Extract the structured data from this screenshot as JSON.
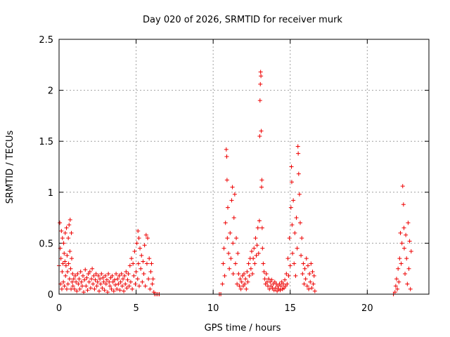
{
  "chart_data": {
    "type": "scatter",
    "title": "Day 020 of 2026, SRMTID for receiver murk",
    "xlabel": "GPS time / hours",
    "ylabel": "SRMTID / TECUs",
    "xlim": [
      0,
      24
    ],
    "ylim": [
      0,
      2.5
    ],
    "x_ticks": [
      0,
      5,
      10,
      15,
      20
    ],
    "x_tick_labels": [
      "0",
      "5",
      "10",
      "15",
      "20"
    ],
    "y_ticks": [
      0,
      0.5,
      1,
      1.5,
      2,
      2.5
    ],
    "y_tick_labels": [
      "0",
      "0.5",
      "1",
      "1.5",
      "2",
      "2.5"
    ],
    "grid": true,
    "marker": "+",
    "color": "#ee0000",
    "series": [
      {
        "name": "SRMTID",
        "points": [
          [
            0.0,
            0.28
          ],
          [
            0.05,
            0.7
          ],
          [
            0.08,
            0.45
          ],
          [
            0.1,
            0.1
          ],
          [
            0.12,
            0.35
          ],
          [
            0.15,
            0.62
          ],
          [
            0.18,
            0.05
          ],
          [
            0.2,
            0.22
          ],
          [
            0.22,
            0.55
          ],
          [
            0.25,
            0.3
          ],
          [
            0.28,
            0.12
          ],
          [
            0.3,
            0.5
          ],
          [
            0.33,
            0.4
          ],
          [
            0.35,
            0.08
          ],
          [
            0.38,
            0.32
          ],
          [
            0.4,
            0.6
          ],
          [
            0.42,
            0.18
          ],
          [
            0.45,
            0.28
          ],
          [
            0.48,
            0.65
          ],
          [
            0.5,
            0.05
          ],
          [
            0.52,
            0.38
          ],
          [
            0.55,
            0.22
          ],
          [
            0.58,
            0.1
          ],
          [
            0.6,
            0.55
          ],
          [
            0.62,
            0.3
          ],
          [
            0.65,
            0.68
          ],
          [
            0.68,
            0.15
          ],
          [
            0.7,
            0.42
          ],
          [
            0.72,
            0.73
          ],
          [
            0.75,
            0.25
          ],
          [
            0.78,
            0.05
          ],
          [
            0.8,
            0.6
          ],
          [
            0.82,
            0.35
          ],
          [
            0.85,
            0.12
          ],
          [
            0.88,
            0.2
          ],
          [
            0.9,
            0.08
          ],
          [
            0.95,
            0.15
          ],
          [
            1.0,
            0.05
          ],
          [
            1.05,
            0.18
          ],
          [
            1.1,
            0.12
          ],
          [
            1.15,
            0.03
          ],
          [
            1.2,
            0.2
          ],
          [
            1.25,
            0.1
          ],
          [
            1.3,
            0.15
          ],
          [
            1.35,
            0.05
          ],
          [
            1.4,
            0.22
          ],
          [
            1.45,
            0.12
          ],
          [
            1.5,
            0.08
          ],
          [
            1.55,
            0.18
          ],
          [
            1.6,
            0.02
          ],
          [
            1.65,
            0.14
          ],
          [
            1.7,
            0.24
          ],
          [
            1.75,
            0.08
          ],
          [
            1.8,
            0.16
          ],
          [
            1.85,
            0.04
          ],
          [
            1.9,
            0.2
          ],
          [
            1.95,
            0.12
          ],
          [
            2.0,
            0.22
          ],
          [
            2.05,
            0.06
          ],
          [
            2.1,
            0.15
          ],
          [
            2.15,
            0.25
          ],
          [
            2.2,
            0.1
          ],
          [
            2.25,
            0.18
          ],
          [
            2.3,
            0.05
          ],
          [
            2.35,
            0.14
          ],
          [
            2.4,
            0.2
          ],
          [
            2.45,
            0.08
          ],
          [
            2.5,
            0.12
          ],
          [
            2.55,
            0.18
          ],
          [
            2.6,
            0.03
          ],
          [
            2.65,
            0.15
          ],
          [
            2.7,
            0.1
          ],
          [
            2.75,
            0.2
          ],
          [
            2.8,
            0.06
          ],
          [
            2.85,
            0.16
          ],
          [
            2.9,
            0.12
          ],
          [
            2.95,
            0.04
          ],
          [
            3.0,
            0.18
          ],
          [
            3.05,
            0.1
          ],
          [
            3.1,
            0.14
          ],
          [
            3.15,
            0.02
          ],
          [
            3.2,
            0.2
          ],
          [
            3.25,
            0.12
          ],
          [
            3.3,
            0.08
          ],
          [
            3.35,
            0.16
          ],
          [
            3.4,
            0.05
          ],
          [
            3.45,
            0.18
          ],
          [
            3.5,
            0.12
          ],
          [
            3.55,
            0.03
          ],
          [
            3.6,
            0.14
          ],
          [
            3.65,
            0.09
          ],
          [
            3.7,
            0.2
          ],
          [
            3.75,
            0.05
          ],
          [
            3.8,
            0.15
          ],
          [
            3.85,
            0.1
          ],
          [
            3.9,
            0.18
          ],
          [
            3.95,
            0.04
          ],
          [
            4.0,
            0.12
          ],
          [
            4.05,
            0.2
          ],
          [
            4.1,
            0.08
          ],
          [
            4.15,
            0.15
          ],
          [
            4.2,
            0.03
          ],
          [
            4.25,
            0.18
          ],
          [
            4.3,
            0.1
          ],
          [
            4.35,
            0.22
          ],
          [
            4.4,
            0.06
          ],
          [
            4.45,
            0.14
          ],
          [
            4.5,
            0.2
          ],
          [
            4.55,
            0.08
          ],
          [
            4.6,
            0.28
          ],
          [
            4.65,
            0.12
          ],
          [
            4.7,
            0.35
          ],
          [
            4.75,
            0.05
          ],
          [
            4.8,
            0.3
          ],
          [
            4.85,
            0.18
          ],
          [
            4.9,
            0.42
          ],
          [
            4.95,
            0.1
          ],
          [
            5.0,
            0.22
          ],
          [
            5.05,
            0.5
          ],
          [
            5.1,
            0.15
          ],
          [
            5.12,
            0.62
          ],
          [
            5.15,
            0.3
          ],
          [
            5.18,
            0.55
          ],
          [
            5.2,
            0.08
          ],
          [
            5.25,
            0.45
          ],
          [
            5.3,
            0.25
          ],
          [
            5.35,
            0.38
          ],
          [
            5.4,
            0.12
          ],
          [
            5.45,
            0.32
          ],
          [
            5.5,
            0.2
          ],
          [
            5.55,
            0.48
          ],
          [
            5.6,
            0.08
          ],
          [
            5.65,
            0.58
          ],
          [
            5.7,
            0.3
          ],
          [
            5.75,
            0.55
          ],
          [
            5.8,
            0.15
          ],
          [
            5.85,
            0.35
          ],
          [
            5.9,
            0.05
          ],
          [
            5.95,
            0.22
          ],
          [
            6.0,
            0.3
          ],
          [
            6.05,
            0.1
          ],
          [
            6.1,
            0.15
          ],
          [
            6.15,
            0.02
          ],
          [
            6.2,
            0.0
          ],
          [
            6.3,
            0.0
          ],
          [
            6.4,
            0.0
          ],
          [
            6.5,
            0.0
          ],
          [
            10.4,
            0.0
          ],
          [
            10.5,
            0.0
          ],
          [
            10.6,
            0.1
          ],
          [
            10.65,
            0.3
          ],
          [
            10.7,
            0.45
          ],
          [
            10.75,
            0.18
          ],
          [
            10.8,
            0.7
          ],
          [
            10.85,
            1.42
          ],
          [
            10.88,
            1.35
          ],
          [
            10.9,
            1.12
          ],
          [
            10.92,
            0.55
          ],
          [
            10.95,
            0.85
          ],
          [
            11.0,
            0.4
          ],
          [
            11.05,
            0.25
          ],
          [
            11.1,
            0.6
          ],
          [
            11.15,
            0.35
          ],
          [
            11.2,
            0.92
          ],
          [
            11.25,
            1.05
          ],
          [
            11.28,
            0.5
          ],
          [
            11.3,
            0.2
          ],
          [
            11.35,
            0.75
          ],
          [
            11.4,
            0.98
          ],
          [
            11.45,
            0.3
          ],
          [
            11.5,
            0.55
          ],
          [
            11.55,
            0.1
          ],
          [
            11.6,
            0.4
          ],
          [
            11.65,
            0.2
          ],
          [
            11.7,
            0.08
          ],
          [
            11.75,
            0.15
          ],
          [
            11.8,
            0.05
          ],
          [
            11.85,
            0.12
          ],
          [
            11.9,
            0.18
          ],
          [
            11.95,
            0.08
          ],
          [
            12.0,
            0.2
          ],
          [
            12.05,
            0.1
          ],
          [
            12.1,
            0.15
          ],
          [
            12.15,
            0.05
          ],
          [
            12.2,
            0.22
          ],
          [
            12.25,
            0.12
          ],
          [
            12.3,
            0.3
          ],
          [
            12.35,
            0.18
          ],
          [
            12.4,
            0.35
          ],
          [
            12.45,
            0.25
          ],
          [
            12.5,
            0.42
          ],
          [
            12.55,
            0.2
          ],
          [
            12.6,
            0.35
          ],
          [
            12.65,
            0.45
          ],
          [
            12.7,
            0.3
          ],
          [
            12.75,
            0.55
          ],
          [
            12.8,
            0.38
          ],
          [
            12.85,
            0.48
          ],
          [
            12.9,
            0.65
          ],
          [
            12.95,
            0.4
          ],
          [
            13.0,
            0.72
          ],
          [
            13.02,
            1.55
          ],
          [
            13.04,
            1.9
          ],
          [
            13.06,
            2.06
          ],
          [
            13.08,
            2.18
          ],
          [
            13.1,
            2.14
          ],
          [
            13.12,
            1.6
          ],
          [
            13.14,
            1.05
          ],
          [
            13.16,
            1.12
          ],
          [
            13.18,
            0.65
          ],
          [
            13.2,
            0.45
          ],
          [
            13.25,
            0.3
          ],
          [
            13.3,
            0.22
          ],
          [
            13.35,
            0.15
          ],
          [
            13.4,
            0.1
          ],
          [
            13.45,
            0.2
          ],
          [
            13.5,
            0.12
          ],
          [
            13.55,
            0.08
          ],
          [
            13.6,
            0.15
          ],
          [
            13.65,
            0.05
          ],
          [
            13.7,
            0.12
          ],
          [
            13.75,
            0.08
          ],
          [
            13.8,
            0.14
          ],
          [
            13.85,
            0.06
          ],
          [
            13.9,
            0.1
          ],
          [
            13.95,
            0.04
          ],
          [
            14.0,
            0.12
          ],
          [
            14.05,
            0.06
          ],
          [
            14.1,
            0.1
          ],
          [
            14.15,
            0.03
          ],
          [
            14.2,
            0.08
          ],
          [
            14.25,
            0.05
          ],
          [
            14.3,
            0.1
          ],
          [
            14.35,
            0.04
          ],
          [
            14.4,
            0.08
          ],
          [
            14.45,
            0.12
          ],
          [
            14.5,
            0.05
          ],
          [
            14.55,
            0.1
          ],
          [
            14.6,
            0.06
          ],
          [
            14.65,
            0.14
          ],
          [
            14.7,
            0.08
          ],
          [
            14.75,
            0.2
          ],
          [
            14.8,
            0.1
          ],
          [
            14.85,
            0.35
          ],
          [
            14.9,
            0.18
          ],
          [
            14.95,
            0.55
          ],
          [
            15.0,
            0.28
          ],
          [
            15.05,
            0.85
          ],
          [
            15.08,
            1.25
          ],
          [
            15.1,
            1.1
          ],
          [
            15.12,
            0.68
          ],
          [
            15.15,
            0.4
          ],
          [
            15.2,
            0.92
          ],
          [
            15.25,
            0.3
          ],
          [
            15.3,
            0.6
          ],
          [
            15.35,
            0.18
          ],
          [
            15.4,
            0.75
          ],
          [
            15.45,
            0.45
          ],
          [
            15.5,
            1.45
          ],
          [
            15.52,
            1.38
          ],
          [
            15.55,
            1.18
          ],
          [
            15.6,
            0.98
          ],
          [
            15.65,
            0.7
          ],
          [
            15.7,
            0.38
          ],
          [
            15.75,
            0.55
          ],
          [
            15.8,
            0.2
          ],
          [
            15.85,
            0.3
          ],
          [
            15.9,
            0.1
          ],
          [
            15.95,
            0.25
          ],
          [
            16.0,
            0.15
          ],
          [
            16.05,
            0.35
          ],
          [
            16.1,
            0.08
          ],
          [
            16.15,
            0.28
          ],
          [
            16.2,
            0.05
          ],
          [
            16.25,
            0.2
          ],
          [
            16.3,
            0.12
          ],
          [
            16.35,
            0.3
          ],
          [
            16.4,
            0.06
          ],
          [
            16.45,
            0.22
          ],
          [
            16.5,
            0.1
          ],
          [
            16.55,
            0.18
          ],
          [
            16.6,
            0.03
          ],
          [
            21.7,
            0.0
          ],
          [
            21.8,
            0.02
          ],
          [
            21.85,
            0.08
          ],
          [
            21.9,
            0.15
          ],
          [
            21.95,
            0.05
          ],
          [
            22.0,
            0.25
          ],
          [
            22.05,
            0.12
          ],
          [
            22.1,
            0.35
          ],
          [
            22.15,
            0.6
          ],
          [
            22.2,
            0.3
          ],
          [
            22.25,
            0.5
          ],
          [
            22.3,
            1.06
          ],
          [
            22.35,
            0.88
          ],
          [
            22.38,
            0.65
          ],
          [
            22.4,
            0.45
          ],
          [
            22.45,
            0.2
          ],
          [
            22.5,
            0.58
          ],
          [
            22.55,
            0.35
          ],
          [
            22.6,
            0.1
          ],
          [
            22.65,
            0.7
          ],
          [
            22.7,
            0.25
          ],
          [
            22.75,
            0.52
          ],
          [
            22.8,
            0.05
          ],
          [
            22.85,
            0.42
          ]
        ]
      }
    ]
  }
}
